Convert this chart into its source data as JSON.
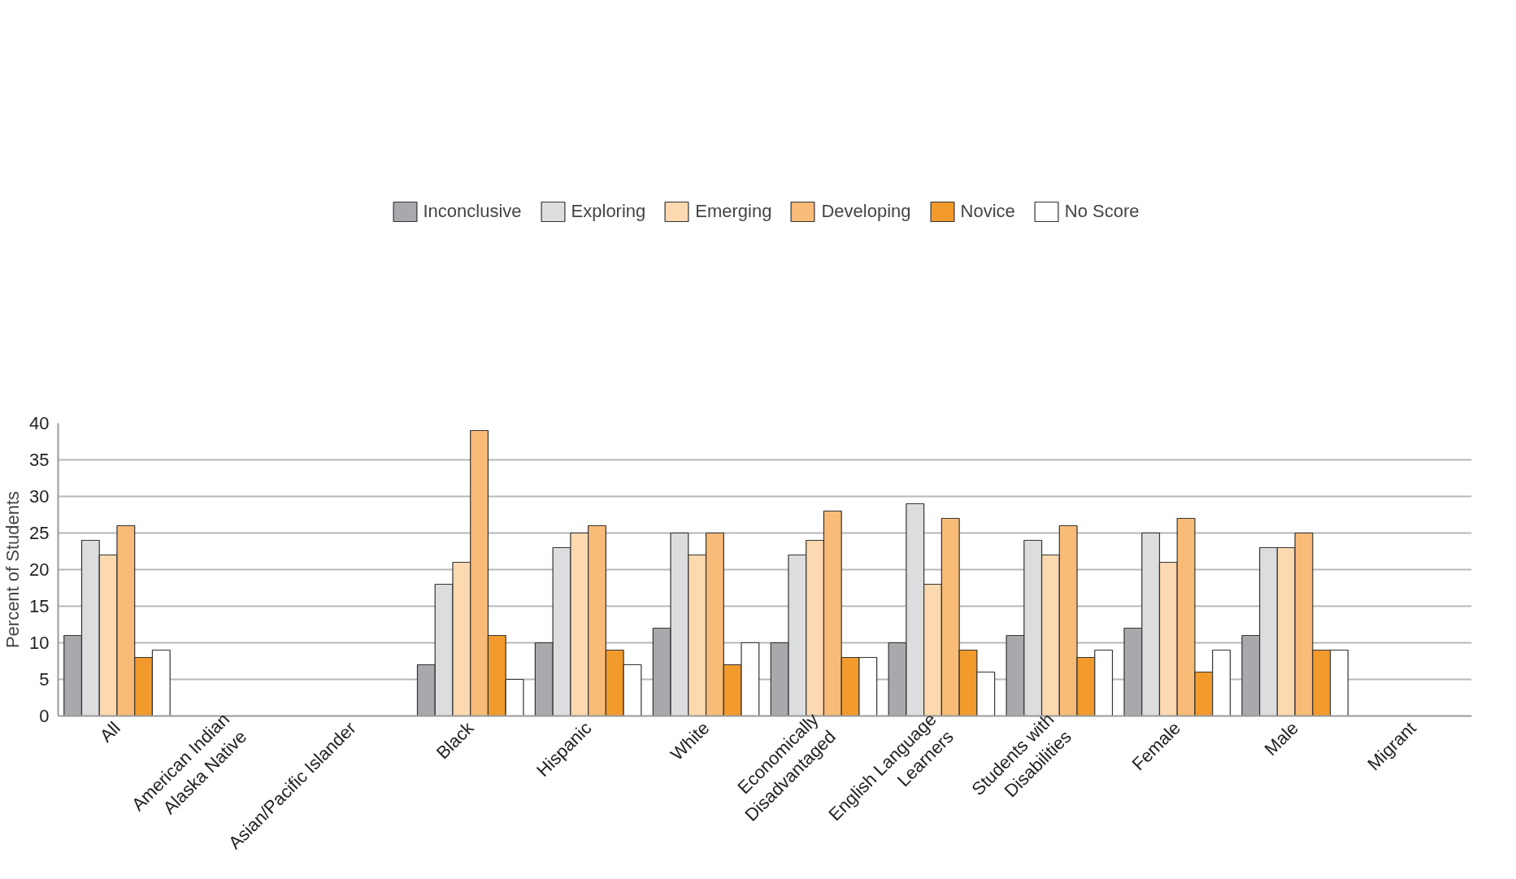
{
  "chart_data": {
    "type": "bar",
    "ylabel": "Percent of Students",
    "categories": [
      "All",
      "American Indian\nAlaska Native",
      "Asian/Pacific Islander",
      "Black",
      "Hispanic",
      "White",
      "Economically\nDisadvantaged",
      "English Language\nLearners",
      "Students with\nDisabilities",
      "Female",
      "Male",
      "Migrant"
    ],
    "series": [
      {
        "name": "Inconclusive",
        "color": "#a7a9ac",
        "values": [
          11,
          null,
          null,
          7,
          10,
          12,
          10,
          10,
          11,
          12,
          11,
          null
        ]
      },
      {
        "name": "Exploring",
        "color": "#dcdddf",
        "values": [
          24,
          null,
          null,
          18,
          23,
          25,
          22,
          29,
          24,
          25,
          23,
          null
        ]
      },
      {
        "name": "Emerging",
        "color": "#fcd9b0",
        "values": [
          22,
          null,
          null,
          21,
          25,
          22,
          24,
          18,
          22,
          21,
          23,
          null
        ]
      },
      {
        "name": "Developing",
        "color": "#f9bb78",
        "values": [
          26,
          null,
          null,
          39,
          26,
          25,
          28,
          27,
          26,
          27,
          25,
          null
        ]
      },
      {
        "name": "Novice",
        "color": "#f39a2c",
        "values": [
          8,
          null,
          null,
          11,
          9,
          7,
          8,
          9,
          8,
          6,
          9,
          null
        ]
      },
      {
        "name": "No Score",
        "color": "#ffffff",
        "values": [
          9,
          null,
          null,
          5,
          7,
          10,
          8,
          6,
          9,
          9,
          9,
          null
        ]
      }
    ],
    "ylim": [
      0,
      40
    ],
    "yticks": [
      0,
      5,
      10,
      15,
      20,
      25,
      30,
      35,
      40
    ],
    "grid": "y",
    "legend": "top"
  }
}
